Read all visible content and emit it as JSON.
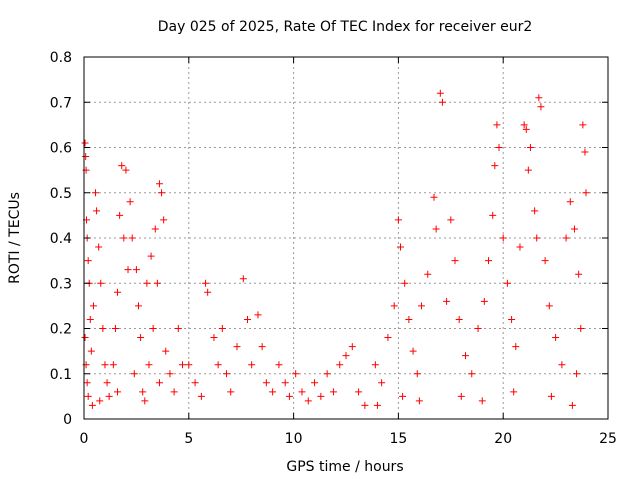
{
  "chart_data": {
    "type": "scatter",
    "title": "Day 025 of 2025, Rate Of TEC Index for receiver eur2",
    "xlabel": "GPS time / hours",
    "ylabel": "ROTI / TECUs",
    "xlim": [
      0,
      25
    ],
    "ylim": [
      0,
      0.8
    ],
    "x_ticks": [
      "0",
      "5",
      "10",
      "15",
      "20",
      "25"
    ],
    "y_ticks": [
      "0",
      "0.1",
      "0.2",
      "0.3",
      "0.4",
      "0.5",
      "0.6",
      "0.7",
      "0.8"
    ],
    "x_tick_values": [
      0,
      5,
      10,
      15,
      20,
      25
    ],
    "y_tick_values": [
      0,
      0.1,
      0.2,
      0.3,
      0.4,
      0.5,
      0.6,
      0.7,
      0.8
    ],
    "grid": true,
    "marker": "+",
    "marker_color": "#ff0000",
    "series": [
      {
        "points": [
          [
            0.05,
            0.61
          ],
          [
            0.08,
            0.58
          ],
          [
            0.1,
            0.55
          ],
          [
            0.12,
            0.44
          ],
          [
            0.15,
            0.4
          ],
          [
            0.2,
            0.35
          ],
          [
            0.25,
            0.3
          ],
          [
            0.3,
            0.22
          ],
          [
            0.05,
            0.18
          ],
          [
            0.1,
            0.12
          ],
          [
            0.15,
            0.08
          ],
          [
            0.2,
            0.05
          ],
          [
            0.35,
            0.15
          ],
          [
            0.45,
            0.25
          ],
          [
            0.55,
            0.5
          ],
          [
            0.6,
            0.46
          ],
          [
            0.7,
            0.38
          ],
          [
            0.8,
            0.3
          ],
          [
            0.9,
            0.2
          ],
          [
            1.0,
            0.12
          ],
          [
            1.1,
            0.08
          ],
          [
            1.2,
            0.05
          ],
          [
            0.4,
            0.03
          ],
          [
            0.75,
            0.04
          ],
          [
            1.8,
            0.56
          ],
          [
            2.0,
            0.55
          ],
          [
            1.7,
            0.45
          ],
          [
            1.9,
            0.4
          ],
          [
            2.1,
            0.33
          ],
          [
            1.6,
            0.28
          ],
          [
            1.5,
            0.2
          ],
          [
            1.4,
            0.12
          ],
          [
            1.6,
            0.06
          ],
          [
            2.2,
            0.48
          ],
          [
            2.3,
            0.4
          ],
          [
            2.5,
            0.33
          ],
          [
            2.6,
            0.25
          ],
          [
            2.7,
            0.18
          ],
          [
            2.4,
            0.1
          ],
          [
            2.8,
            0.06
          ],
          [
            3.0,
            0.3
          ],
          [
            3.2,
            0.36
          ],
          [
            3.4,
            0.42
          ],
          [
            3.6,
            0.52
          ],
          [
            3.7,
            0.5
          ],
          [
            3.8,
            0.44
          ],
          [
            3.5,
            0.3
          ],
          [
            3.3,
            0.2
          ],
          [
            3.1,
            0.12
          ],
          [
            3.9,
            0.15
          ],
          [
            4.1,
            0.1
          ],
          [
            4.3,
            0.06
          ],
          [
            4.5,
            0.2
          ],
          [
            4.7,
            0.12
          ],
          [
            3.6,
            0.08
          ],
          [
            2.9,
            0.04
          ],
          [
            5.0,
            0.12
          ],
          [
            5.3,
            0.08
          ],
          [
            5.6,
            0.05
          ],
          [
            5.8,
            0.3
          ],
          [
            5.9,
            0.28
          ],
          [
            6.2,
            0.18
          ],
          [
            6.4,
            0.12
          ],
          [
            6.6,
            0.2
          ],
          [
            6.8,
            0.1
          ],
          [
            7.0,
            0.06
          ],
          [
            7.3,
            0.16
          ],
          [
            7.6,
            0.31
          ],
          [
            7.8,
            0.22
          ],
          [
            8.0,
            0.12
          ],
          [
            8.3,
            0.23
          ],
          [
            8.5,
            0.16
          ],
          [
            8.7,
            0.08
          ],
          [
            9.0,
            0.06
          ],
          [
            9.3,
            0.12
          ],
          [
            9.6,
            0.08
          ],
          [
            9.8,
            0.05
          ],
          [
            10.1,
            0.1
          ],
          [
            10.4,
            0.06
          ],
          [
            10.7,
            0.04
          ],
          [
            11.0,
            0.08
          ],
          [
            11.3,
            0.05
          ],
          [
            11.6,
            0.1
          ],
          [
            11.9,
            0.06
          ],
          [
            12.2,
            0.12
          ],
          [
            12.5,
            0.14
          ],
          [
            12.8,
            0.16
          ],
          [
            13.1,
            0.06
          ],
          [
            13.4,
            0.03
          ],
          [
            13.9,
            0.12
          ],
          [
            14.2,
            0.08
          ],
          [
            14.5,
            0.18
          ],
          [
            14.8,
            0.25
          ],
          [
            15.0,
            0.44
          ],
          [
            15.1,
            0.38
          ],
          [
            15.3,
            0.3
          ],
          [
            15.5,
            0.22
          ],
          [
            15.7,
            0.15
          ],
          [
            15.9,
            0.1
          ],
          [
            16.1,
            0.25
          ],
          [
            16.4,
            0.32
          ],
          [
            16.7,
            0.49
          ],
          [
            16.8,
            0.42
          ],
          [
            17.0,
            0.72
          ],
          [
            17.1,
            0.7
          ],
          [
            17.3,
            0.26
          ],
          [
            17.5,
            0.44
          ],
          [
            17.7,
            0.35
          ],
          [
            17.9,
            0.22
          ],
          [
            18.2,
            0.14
          ],
          [
            18.5,
            0.1
          ],
          [
            18.8,
            0.2
          ],
          [
            19.1,
            0.26
          ],
          [
            19.3,
            0.35
          ],
          [
            19.5,
            0.45
          ],
          [
            19.6,
            0.56
          ],
          [
            19.7,
            0.65
          ],
          [
            19.8,
            0.6
          ],
          [
            20.0,
            0.4
          ],
          [
            20.2,
            0.3
          ],
          [
            20.4,
            0.22
          ],
          [
            20.6,
            0.16
          ],
          [
            20.8,
            0.38
          ],
          [
            21.0,
            0.65
          ],
          [
            21.1,
            0.64
          ],
          [
            21.2,
            0.55
          ],
          [
            21.3,
            0.6
          ],
          [
            21.5,
            0.46
          ],
          [
            21.6,
            0.4
          ],
          [
            21.7,
            0.71
          ],
          [
            21.8,
            0.69
          ],
          [
            22.0,
            0.35
          ],
          [
            22.2,
            0.25
          ],
          [
            22.5,
            0.18
          ],
          [
            22.8,
            0.12
          ],
          [
            23.0,
            0.4
          ],
          [
            23.2,
            0.48
          ],
          [
            23.4,
            0.42
          ],
          [
            23.6,
            0.32
          ],
          [
            23.8,
            0.65
          ],
          [
            23.9,
            0.59
          ],
          [
            23.95,
            0.5
          ],
          [
            23.7,
            0.2
          ],
          [
            23.5,
            0.1
          ],
          [
            18.0,
            0.05
          ],
          [
            19.0,
            0.04
          ],
          [
            20.5,
            0.06
          ],
          [
            22.3,
            0.05
          ],
          [
            23.3,
            0.03
          ],
          [
            16.0,
            0.04
          ],
          [
            15.2,
            0.05
          ],
          [
            14.0,
            0.03
          ]
        ]
      }
    ]
  }
}
